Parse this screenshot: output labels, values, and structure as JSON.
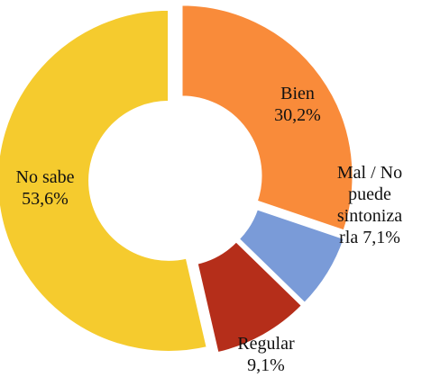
{
  "chart_data": {
    "type": "donut",
    "categories": [
      "Bien",
      "Mal / No puede sintonizarla",
      "Regular",
      "No sabe"
    ],
    "values": [
      30.2,
      7.1,
      9.1,
      53.6
    ],
    "value_labels": [
      "30,2%",
      "7,1%",
      "9,1%",
      "53,6%"
    ],
    "colors": [
      "#f98b3a",
      "#7a9bd8",
      "#b52e1a",
      "#f5cb2e"
    ]
  }
}
